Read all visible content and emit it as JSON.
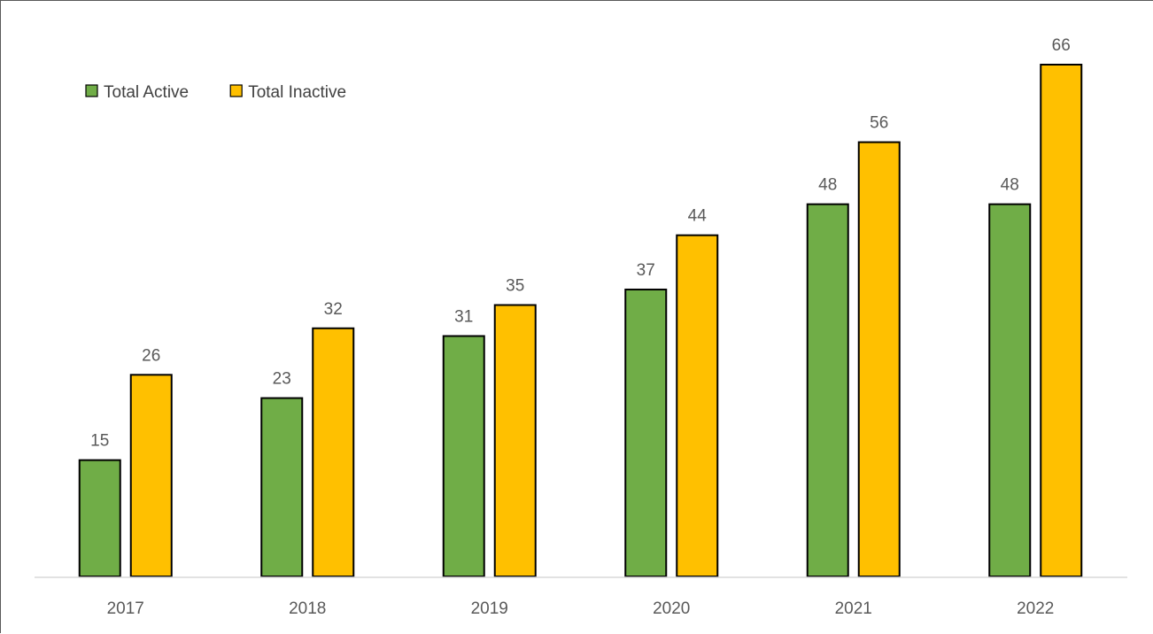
{
  "chart_data": {
    "type": "bar",
    "title": "",
    "xlabel": "",
    "ylabel": "",
    "categories": [
      "2017",
      "2018",
      "2019",
      "2020",
      "2021",
      "2022"
    ],
    "series": [
      {
        "name": "Total Active",
        "values": [
          15,
          23,
          31,
          37,
          48,
          48
        ],
        "color": "#70AD47"
      },
      {
        "name": "Total Inactive",
        "values": [
          26,
          32,
          35,
          44,
          56,
          66
        ],
        "color": "#FFC000"
      }
    ],
    "ylim": [
      0,
      66
    ],
    "grid": false,
    "legend": "top-left",
    "data_labels": true,
    "bar_outline_color": "#000000",
    "axis_color": "#D9D9D9"
  }
}
